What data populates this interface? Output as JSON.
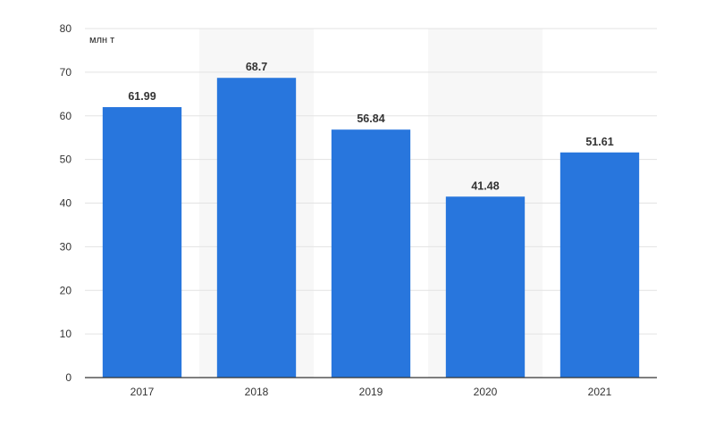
{
  "chart_data": {
    "type": "bar",
    "categories": [
      "2017",
      "2018",
      "2019",
      "2020",
      "2021"
    ],
    "values": [
      61.99,
      68.7,
      56.84,
      41.48,
      51.61
    ],
    "value_labels": [
      "61.99",
      "68.7",
      "56.84",
      "41.48",
      "51.61"
    ],
    "title": "",
    "xlabel": "",
    "ylabel": "",
    "unit": "млн т",
    "ylim": [
      0,
      80
    ],
    "y_ticks": [
      0,
      10,
      20,
      30,
      40,
      50,
      60,
      70,
      80
    ],
    "grid": true,
    "legend": "none",
    "colors": {
      "bar": "#2876dd",
      "grid": "#e3e3e3",
      "axis": "#333333",
      "band": "#f7f7f7"
    }
  }
}
